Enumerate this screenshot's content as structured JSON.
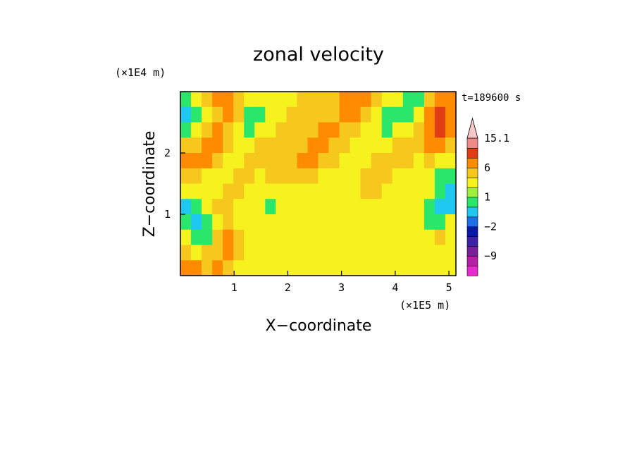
{
  "chart_data": {
    "type": "heatmap",
    "title": "zonal velocity",
    "xlabel": "X−coordinate",
    "ylabel": "Z−coordinate",
    "x_unit": "(×1E5 m)",
    "y_unit": "(×1E4 m)",
    "time_label": "t=189600 s",
    "xlim": [
      0,
      5.13
    ],
    "ylim": [
      0,
      3.0
    ],
    "x_ticks": [
      "1",
      "2",
      "3",
      "4",
      "5"
    ],
    "y_ticks": [
      "1",
      "2"
    ],
    "x_tick_values": [
      1,
      2,
      3,
      4,
      5
    ],
    "y_tick_values": [
      1,
      2
    ],
    "grid": false,
    "colorbar": {
      "levels": [
        -15,
        -12,
        -9,
        -6,
        -3,
        -2,
        -1,
        0,
        1,
        2,
        3,
        6,
        9,
        12,
        15.1
      ],
      "colors": [
        "#e82ad0",
        "#b71ea8",
        "#7a1f9a",
        "#3b23a8",
        "#0a18a8",
        "#1e6ee6",
        "#1ec8f0",
        "#2ae66a",
        "#9ef03c",
        "#f6f21e",
        "#f6c81e",
        "#ff8c00",
        "#e23c14",
        "#f08a8a",
        "#f8c8c8"
      ],
      "labels": [
        {
          "value": 15.1,
          "text": "15.1"
        },
        {
          "value": 6,
          "text": "6"
        },
        {
          "value": 1,
          "text": "1"
        },
        {
          "value": -2,
          "text": "−2"
        },
        {
          "value": -9,
          "text": "−9"
        }
      ]
    },
    "field": [
      [
        2,
        3,
        4,
        5,
        5,
        4,
        3,
        3,
        3,
        3,
        3,
        4,
        4,
        4,
        4,
        5,
        5,
        5,
        4,
        3,
        3,
        2,
        2,
        4,
        5,
        5
      ],
      [
        1,
        2,
        3,
        4,
        5,
        4,
        2,
        2,
        3,
        3,
        4,
        4,
        4,
        4,
        4,
        5,
        5,
        4,
        3,
        2,
        2,
        2,
        3,
        5,
        6,
        5
      ],
      [
        2,
        3,
        4,
        5,
        4,
        3,
        2,
        3,
        3,
        4,
        4,
        4,
        4,
        5,
        5,
        4,
        4,
        3,
        3,
        2,
        3,
        3,
        4,
        5,
        6,
        5
      ],
      [
        4,
        4,
        5,
        5,
        4,
        3,
        3,
        4,
        4,
        4,
        4,
        4,
        5,
        5,
        4,
        4,
        3,
        3,
        3,
        3,
        4,
        4,
        4,
        5,
        5,
        4
      ],
      [
        5,
        5,
        5,
        4,
        3,
        3,
        4,
        4,
        4,
        4,
        4,
        5,
        5,
        4,
        4,
        3,
        3,
        3,
        4,
        4,
        4,
        4,
        3,
        4,
        3,
        3
      ],
      [
        4,
        4,
        3,
        3,
        3,
        4,
        4,
        3,
        4,
        4,
        4,
        4,
        4,
        3,
        3,
        3,
        3,
        4,
        4,
        4,
        3,
        3,
        3,
        3,
        2,
        2
      ],
      [
        3,
        3,
        3,
        3,
        4,
        4,
        3,
        3,
        3,
        3,
        3,
        3,
        3,
        3,
        3,
        3,
        3,
        4,
        4,
        3,
        3,
        3,
        3,
        3,
        2,
        1
      ],
      [
        1,
        2,
        3,
        4,
        4,
        3,
        3,
        3,
        2,
        3,
        3,
        3,
        3,
        3,
        3,
        3,
        3,
        3,
        3,
        3,
        3,
        3,
        3,
        2,
        1,
        1
      ],
      [
        2,
        1,
        2,
        3,
        4,
        3,
        3,
        3,
        3,
        3,
        3,
        3,
        3,
        3,
        3,
        3,
        3,
        3,
        3,
        3,
        3,
        3,
        3,
        2,
        2,
        3
      ],
      [
        3,
        2,
        2,
        4,
        5,
        4,
        3,
        3,
        3,
        3,
        3,
        3,
        3,
        3,
        3,
        3,
        3,
        3,
        3,
        3,
        3,
        3,
        3,
        3,
        4,
        3
      ],
      [
        4,
        3,
        4,
        4,
        5,
        4,
        3,
        3,
        3,
        3,
        3,
        3,
        3,
        3,
        3,
        3,
        3,
        3,
        3,
        3,
        3,
        3,
        3,
        3,
        3,
        3
      ],
      [
        5,
        5,
        4,
        5,
        4,
        3,
        3,
        3,
        3,
        3,
        3,
        3,
        3,
        3,
        3,
        3,
        3,
        3,
        3,
        3,
        3,
        3,
        3,
        3,
        3,
        3
      ]
    ]
  }
}
